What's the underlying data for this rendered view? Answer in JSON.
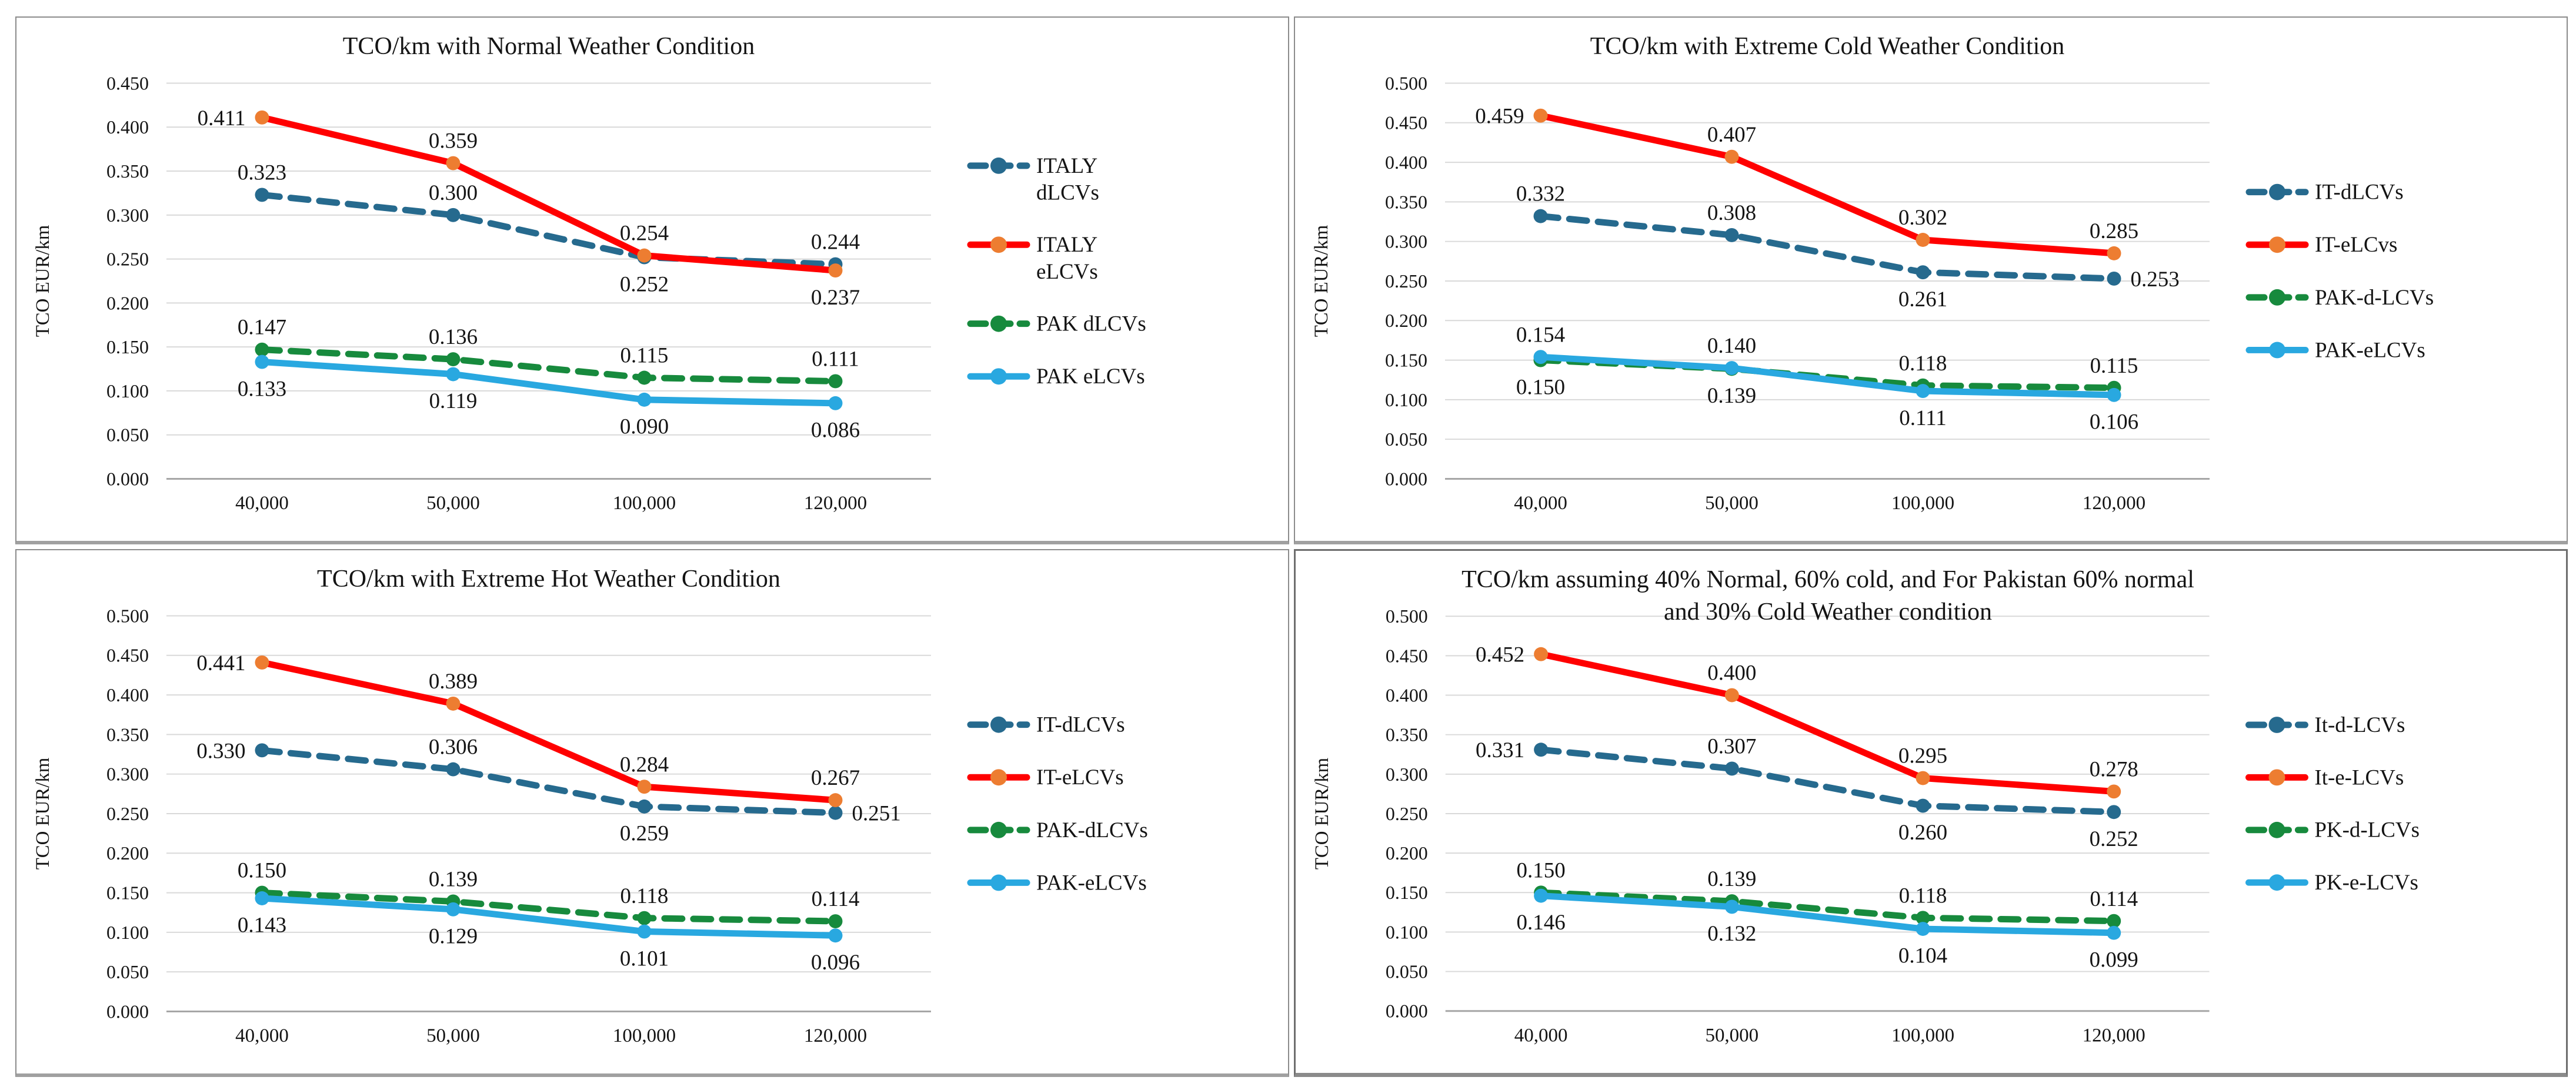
{
  "figure": {
    "background": "#FFFFFF",
    "ylabel": "TCO EUR/km",
    "grid_color": "#D9D9D9",
    "axis_color": "#A6A6A6",
    "text_color": "#141414"
  },
  "chart_data": [
    {
      "type": "line",
      "title": "TCO/km with Normal Weather Condition",
      "xlabel": "",
      "ylabel": "TCO EUR/km",
      "categories": [
        "40,000",
        "50,000",
        "100,000",
        "120,000"
      ],
      "ylim": [
        0.0,
        0.45
      ],
      "ytick_step": 0.05,
      "grid": true,
      "legend_position": "right",
      "series": [
        {
          "name": "ITALY dLCVs",
          "name_lines": [
            "ITALY",
            "dLCVs"
          ],
          "color": "#266A8E",
          "marker_color": "#266A8E",
          "dash": true,
          "values": [
            0.323,
            0.3,
            0.252,
            0.244
          ],
          "label_pos": [
            "above",
            "above",
            "below",
            "above"
          ]
        },
        {
          "name": "ITALY eLCVs",
          "name_lines": [
            "ITALY",
            "eLCVs"
          ],
          "color": "#FF0000",
          "marker_color": "#ED7D31",
          "dash": false,
          "values": [
            0.411,
            0.359,
            0.254,
            0.237
          ],
          "label_pos": [
            "left",
            "above",
            "above",
            "below"
          ]
        },
        {
          "name": "PAK dLCVs",
          "color": "#178A3D",
          "marker_color": "#178A3D",
          "dash": true,
          "values": [
            0.147,
            0.136,
            0.115,
            0.111
          ],
          "label_pos": [
            "above",
            "above",
            "above",
            "above"
          ]
        },
        {
          "name": "PAK eLCVs",
          "color": "#29A8E0",
          "marker_color": "#29A8E0",
          "dash": false,
          "values": [
            0.133,
            0.119,
            0.09,
            0.086
          ],
          "label_pos": [
            "below",
            "below",
            "below",
            "below"
          ]
        }
      ]
    },
    {
      "type": "line",
      "title": "TCO/km with Extreme Cold Weather Condition",
      "xlabel": "",
      "ylabel": "TCO EUR/km",
      "categories": [
        "40,000",
        "50,000",
        "100,000",
        "120,000"
      ],
      "ylim": [
        0.0,
        0.5
      ],
      "ytick_step": 0.05,
      "grid": true,
      "legend_position": "right",
      "series": [
        {
          "name": "IT-dLCVs",
          "color": "#266A8E",
          "marker_color": "#266A8E",
          "dash": true,
          "values": [
            0.332,
            0.308,
            0.261,
            0.253
          ],
          "label_pos": [
            "above",
            "above",
            "below",
            "right"
          ]
        },
        {
          "name": "IT-eLCvs",
          "color": "#FF0000",
          "marker_color": "#ED7D31",
          "dash": false,
          "values": [
            0.459,
            0.407,
            0.302,
            0.285
          ],
          "label_pos": [
            "left",
            "above",
            "above",
            "above"
          ]
        },
        {
          "name": "PAK-d-LCVs",
          "color": "#178A3D",
          "marker_color": "#178A3D",
          "dash": true,
          "values": [
            0.15,
            0.139,
            0.118,
            0.115
          ],
          "label_pos": [
            "below",
            "below",
            "above",
            "above"
          ]
        },
        {
          "name": "PAK-eLCVs",
          "color": "#29A8E0",
          "marker_color": "#29A8E0",
          "dash": false,
          "values": [
            0.154,
            0.14,
            0.111,
            0.106
          ],
          "label_pos": [
            "above",
            "above",
            "below",
            "below"
          ]
        }
      ]
    },
    {
      "type": "line",
      "title": "TCO/km with Extreme Hot Weather Condition",
      "xlabel": "",
      "ylabel": "TCO EUR/km",
      "categories": [
        "40,000",
        "50,000",
        "100,000",
        "120,000"
      ],
      "ylim": [
        0.0,
        0.5
      ],
      "ytick_step": 0.05,
      "grid": true,
      "legend_position": "right",
      "series": [
        {
          "name": "IT-dLCVs",
          "color": "#266A8E",
          "marker_color": "#266A8E",
          "dash": true,
          "values": [
            0.33,
            0.306,
            0.259,
            0.251
          ],
          "label_pos": [
            "left",
            "above",
            "below",
            "right"
          ]
        },
        {
          "name": "IT-eLCVs",
          "color": "#FF0000",
          "marker_color": "#ED7D31",
          "dash": false,
          "values": [
            0.441,
            0.389,
            0.284,
            0.267
          ],
          "label_pos": [
            "left",
            "above",
            "above",
            "above"
          ]
        },
        {
          "name": "PAK-dLCVs",
          "color": "#178A3D",
          "marker_color": "#178A3D",
          "dash": true,
          "values": [
            0.15,
            0.139,
            0.118,
            0.114
          ],
          "label_pos": [
            "above",
            "above",
            "above",
            "above"
          ]
        },
        {
          "name": "PAK-eLCVs",
          "color": "#29A8E0",
          "marker_color": "#29A8E0",
          "dash": false,
          "values": [
            0.143,
            0.129,
            0.101,
            0.096
          ],
          "label_pos": [
            "below",
            "below",
            "below",
            "below"
          ]
        }
      ]
    },
    {
      "type": "line",
      "title": "TCO/km assuming 40% Normal, 60% cold, and For Pakistan 60% normal and 30% Cold Weather condition",
      "xlabel": "",
      "ylabel": "TCO EUR/km",
      "categories": [
        "40,000",
        "50,000",
        "100,000",
        "120,000"
      ],
      "ylim": [
        0.0,
        0.5
      ],
      "ytick_step": 0.05,
      "grid": true,
      "legend_position": "right",
      "series": [
        {
          "name": "It-d-LCVs",
          "color": "#266A8E",
          "marker_color": "#266A8E",
          "dash": true,
          "values": [
            0.331,
            0.307,
            0.26,
            0.252
          ],
          "label_pos": [
            "left",
            "above",
            "below",
            "below"
          ]
        },
        {
          "name": "It-e-LCVs",
          "color": "#FF0000",
          "marker_color": "#ED7D31",
          "dash": false,
          "values": [
            0.452,
            0.4,
            0.295,
            0.278
          ],
          "label_pos": [
            "left",
            "above",
            "above",
            "above"
          ]
        },
        {
          "name": "PK-d-LCVs",
          "color": "#178A3D",
          "marker_color": "#178A3D",
          "dash": true,
          "values": [
            0.15,
            0.139,
            0.118,
            0.114
          ],
          "label_pos": [
            "above",
            "above",
            "above",
            "above"
          ]
        },
        {
          "name": "PK-e-LCVs",
          "color": "#29A8E0",
          "marker_color": "#29A8E0",
          "dash": false,
          "values": [
            0.146,
            0.132,
            0.104,
            0.099
          ],
          "label_pos": [
            "below",
            "below",
            "below",
            "below"
          ]
        }
      ]
    }
  ]
}
